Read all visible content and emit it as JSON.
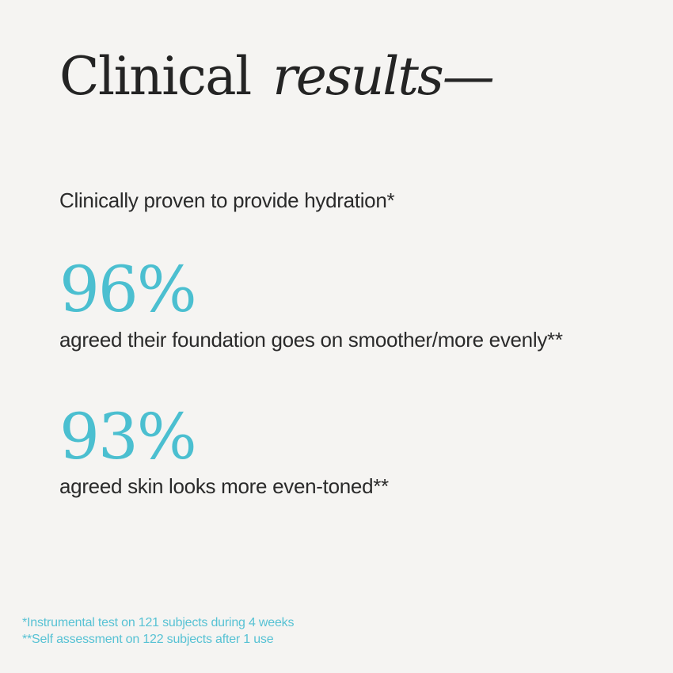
{
  "page": {
    "background_color": "#F5F4F2",
    "text_color": "#242424",
    "accent_color": "#4BBFD0"
  },
  "header": {
    "title_regular": "Clinical",
    "title_italic": "results—"
  },
  "intro": {
    "text": "Clinically proven to provide hydration*"
  },
  "stats": [
    {
      "value": "96%",
      "label": "agreed their foundation goes on smoother/more evenly**"
    },
    {
      "value": "93%",
      "label": "agreed skin looks more even-toned**"
    }
  ],
  "footnotes": [
    "*Instrumental test on 121 subjects during 4 weeks",
    "**Self assessment on 122 subjects after 1 use"
  ]
}
